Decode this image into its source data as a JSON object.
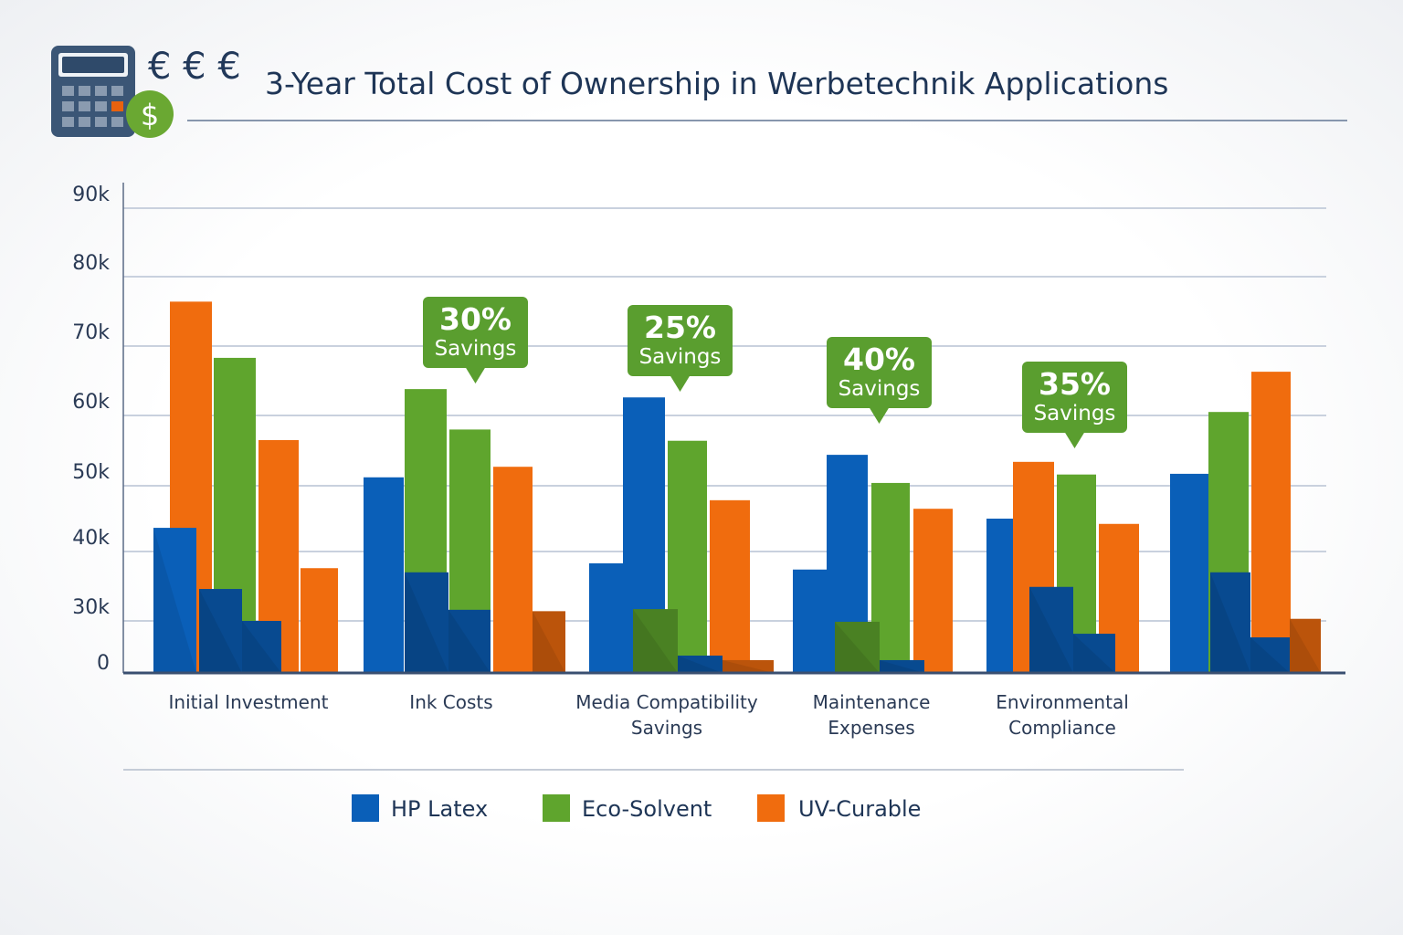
{
  "header": {
    "title": "3-Year Total Cost of Ownership in Werbetechnik Applications",
    "currency_symbols": "€ € €",
    "icon": "calculator-icon",
    "badge_icon": "dollar-coin-icon",
    "badge_symbol": "$"
  },
  "colors": {
    "HP Latex": "#0a5fb8",
    "Eco-Solvent": "#5fa52d",
    "UV-Curable": "#f06c0e",
    "callout": "#5a9e2f",
    "title": "#1e3556"
  },
  "chart_data": {
    "type": "bar",
    "title": "3-Year Total Cost of Ownership in Werbetechnik Applications",
    "xlabel": "",
    "ylabel": "",
    "y_ticks": [
      "90k",
      "80k",
      "70k",
      "60k",
      "50k",
      "40k",
      "30k",
      "0"
    ],
    "y_tick_values": [
      90000,
      80000,
      70000,
      60000,
      50000,
      40000,
      30000,
      0
    ],
    "ylim": [
      0,
      90000
    ],
    "grid": true,
    "legend_position": "bottom",
    "legend": [
      "HP Latex",
      "Eco-Solvent",
      "UV-Curable"
    ],
    "categories": [
      "Initial Investment",
      "Ink Costs",
      "Media Compatibility Savings",
      "Maintenance Expenses",
      "Environmental Compliance",
      ""
    ],
    "category_lines": [
      [
        "Initial Investment"
      ],
      [
        "Ink Costs"
      ],
      [
        "Media Compatibility",
        "Savings"
      ],
      [
        "Maintenance",
        "Expenses"
      ],
      [
        "Environmental",
        "Compliance"
      ],
      []
    ],
    "groups": [
      {
        "back": [
          [
            "UV-Curable",
            76400
          ],
          [
            "Eco-Solvent",
            68300
          ],
          [
            "UV-Curable",
            56500
          ],
          [
            "UV-Curable",
            37600
          ]
        ],
        "front": [
          [
            "HP Latex",
            43600
          ],
          [
            "HP Latex",
            34600
          ],
          [
            "HP Latex",
            30000
          ]
        ]
      },
      {
        "back": [
          [
            "HP Latex",
            51200
          ],
          [
            "Eco-Solvent",
            63800
          ],
          [
            "Eco-Solvent",
            58000
          ],
          [
            "UV-Curable",
            52700
          ]
        ],
        "front": [
          [
            "HP Latex",
            37000
          ],
          [
            "HP Latex",
            31600
          ],
          [
            "UV-Curable",
            31400
          ]
        ]
      },
      {
        "back": [
          [
            "HP Latex",
            38300
          ],
          [
            "HP Latex",
            62600
          ],
          [
            "Eco-Solvent",
            56400
          ],
          [
            "UV-Curable",
            47800
          ]
        ],
        "front": [
          [
            "Eco-Solvent",
            31700
          ],
          [
            "HP Latex",
            10000
          ],
          [
            "UV-Curable",
            7400
          ]
        ]
      },
      {
        "back": [
          [
            "HP Latex",
            37400
          ],
          [
            "HP Latex",
            54400
          ],
          [
            "Eco-Solvent",
            50400
          ],
          [
            "UV-Curable",
            46500
          ]
        ],
        "front": [
          [
            "Eco-Solvent",
            29500
          ],
          [
            "HP Latex",
            7400
          ]
        ]
      },
      {
        "back": [
          [
            "HP Latex",
            45000
          ],
          [
            "UV-Curable",
            53400
          ],
          [
            "Eco-Solvent",
            51600
          ],
          [
            "UV-Curable",
            44200
          ]
        ],
        "front": [
          [
            "HP Latex",
            34900
          ],
          [
            "HP Latex",
            22600
          ]
        ]
      },
      {
        "back": [
          [
            "HP Latex",
            51700
          ],
          [
            "Eco-Solvent",
            60500
          ],
          [
            "UV-Curable",
            66300
          ]
        ],
        "front": [
          [
            "HP Latex",
            37000
          ],
          [
            "HP Latex",
            20500
          ],
          [
            "UV-Curable",
            30300
          ]
        ]
      }
    ],
    "annotations": [
      {
        "category": "Ink Costs",
        "percent": "30%",
        "label": "Savings"
      },
      {
        "category": "Media Compatibility Savings",
        "percent": "25%",
        "label": "Savings"
      },
      {
        "category": "Maintenance Expenses",
        "percent": "40%",
        "label": "Savings"
      },
      {
        "category": "Environmental Compliance",
        "percent": "35%",
        "label": "Savings"
      }
    ]
  }
}
